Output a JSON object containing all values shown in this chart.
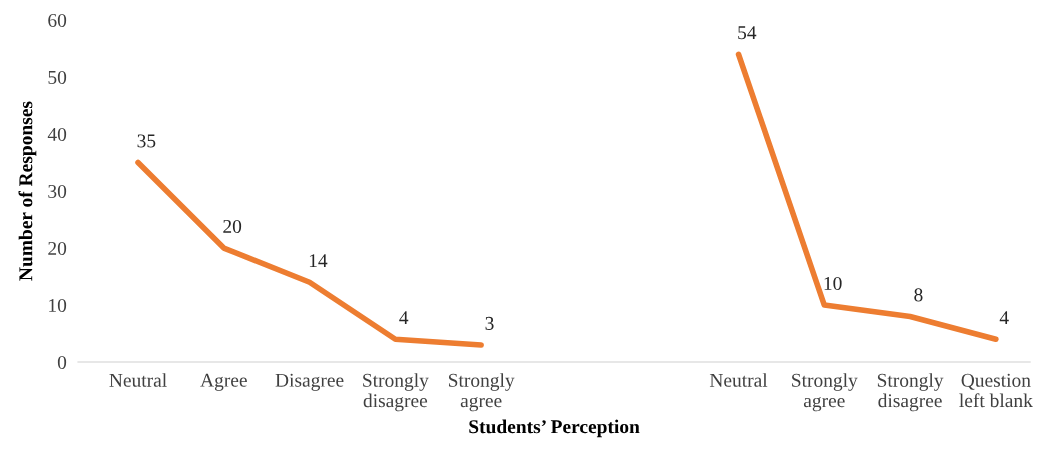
{
  "chart_data": {
    "type": "line",
    "xlabel": "Students’ Perception",
    "ylabel": "Number of Responses",
    "categories": [
      "Neutral",
      "Agree",
      "Disagree",
      "Strongly disagree",
      "Strongly agree",
      null,
      null,
      "Neutral",
      "Strongly agree",
      "Strongly disagree",
      "Question left blank"
    ],
    "series": [
      {
        "color": "#ed7d31",
        "values": [
          35,
          20,
          14,
          4,
          3,
          null,
          null,
          54,
          10,
          8,
          4
        ]
      }
    ],
    "ylim": [
      0,
      60
    ],
    "yticks": [
      0,
      10,
      20,
      30,
      40,
      50,
      60
    ],
    "grid": false,
    "legend": false,
    "marker": "none",
    "line_style": "solid",
    "data_labels": true
  }
}
